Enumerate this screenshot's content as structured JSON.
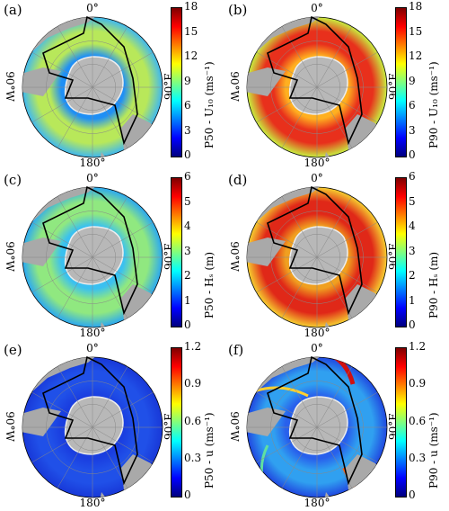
{
  "panels": [
    {
      "id": "a",
      "label": "(a)",
      "top": "0°",
      "bottom": "180°",
      "west": "90°W",
      "east": "90°E",
      "cbar_label": "P50 - U₁₀ (ms⁻¹)",
      "ticks": [
        "18",
        "15",
        "12",
        "9",
        "6",
        "3",
        "0"
      ],
      "bg": "#3fb8f0",
      "ring": "#b8e85a",
      "inner": "#1f8ff5",
      "level": "low"
    },
    {
      "id": "b",
      "label": "(b)",
      "top": "0°",
      "bottom": "180°",
      "west": "90°W",
      "east": "90°E",
      "cbar_label": "P90 - U₁₀ (ms⁻¹)",
      "ticks": [
        "18",
        "15",
        "12",
        "9",
        "6",
        "3",
        "0"
      ],
      "bg": "#c8f040",
      "ring": "#e8301c",
      "inner": "#ffb020",
      "level": "high"
    },
    {
      "id": "c",
      "label": "(c)",
      "top": "0°",
      "bottom": "180°",
      "west": "90°W",
      "east": "90°E",
      "cbar_label": "P50 - Hₛ (m)",
      "ticks": [
        "6",
        "5",
        "4",
        "3",
        "2",
        "1",
        "0"
      ],
      "bg": "#2aa8f2",
      "ring": "#90e880",
      "inner": "#3ac0f0",
      "level": "low"
    },
    {
      "id": "d",
      "label": "(d)",
      "top": "0°",
      "bottom": "180°",
      "west": "90°W",
      "east": "90°E",
      "cbar_label": "P90 - Hₛ (m)",
      "ticks": [
        "6",
        "5",
        "4",
        "3",
        "2",
        "1",
        "0"
      ],
      "bg": "#f6d030",
      "ring": "#e02818",
      "inner": "#f0a020",
      "level": "high"
    },
    {
      "id": "e",
      "label": "(e)",
      "top": "0°",
      "bottom": "180°",
      "west": "90°W",
      "east": "90°E",
      "cbar_label": "P50 - u (ms⁻¹)",
      "ticks": [
        "1.2",
        "0.9",
        "0.6",
        "0.3",
        "0"
      ],
      "bg": "#1838d8",
      "ring": "#2050e8",
      "inner": "#1a3ee0",
      "level": "flow"
    },
    {
      "id": "f",
      "label": "(f)",
      "top": "0°",
      "bottom": "180°",
      "west": "90°W",
      "east": "90°E",
      "cbar_label": "P90 - u (ms⁻¹)",
      "ticks": [
        "1.2",
        "0.9",
        "0.6",
        "0.3",
        "0"
      ],
      "bg": "#2048e0",
      "ring": "#30a0f0",
      "inner": "#2860ec",
      "level": "flowhigh"
    }
  ]
}
